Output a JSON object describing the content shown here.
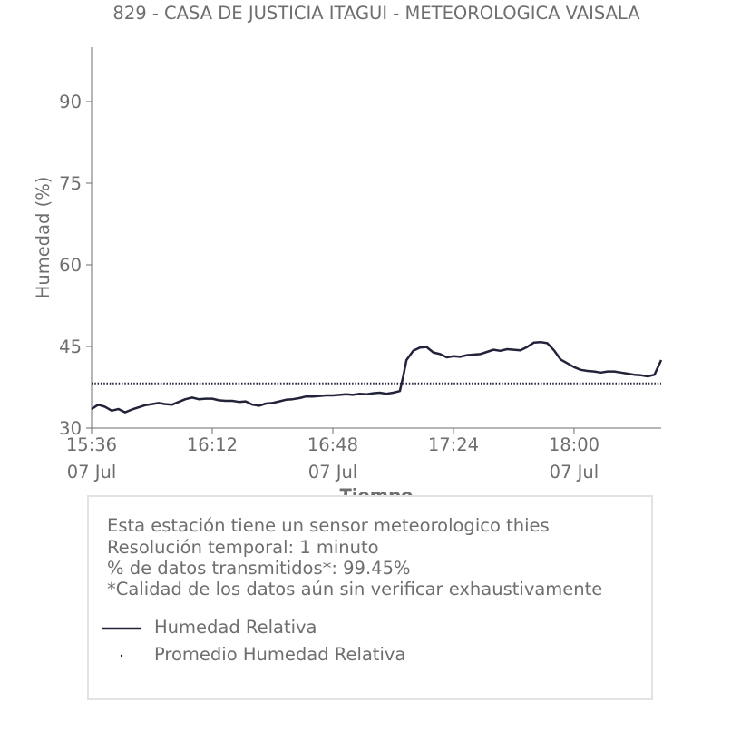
{
  "chart_data": {
    "type": "line",
    "title": "829 - CASA DE JUSTICIA ITAGUI - METEOROLOGICA VAISALA",
    "xlabel": "Tiempo",
    "ylabel": "Humedad (%)",
    "ylim": [
      30,
      100
    ],
    "yticks": [
      30,
      45,
      60,
      75,
      90
    ],
    "xlim": [
      "15:36",
      "18:26"
    ],
    "xticks": [
      {
        "time": "15:36",
        "date": "07 Jul"
      },
      {
        "time": "16:12",
        "date": ""
      },
      {
        "time": "16:48",
        "date": "07 Jul"
      },
      {
        "time": "17:24",
        "date": ""
      },
      {
        "time": "18:00",
        "date": "07 Jul"
      }
    ],
    "grid": false,
    "series": [
      {
        "name": "Humedad Relativa",
        "style": "solid",
        "color": "#22223a",
        "x": [
          "15:36",
          "15:38",
          "15:40",
          "15:42",
          "15:44",
          "15:46",
          "15:48",
          "15:50",
          "15:52",
          "15:54",
          "15:56",
          "15:58",
          "16:00",
          "16:02",
          "16:04",
          "16:06",
          "16:08",
          "16:10",
          "16:12",
          "16:14",
          "16:16",
          "16:18",
          "16:20",
          "16:22",
          "16:24",
          "16:26",
          "16:28",
          "16:30",
          "16:32",
          "16:34",
          "16:36",
          "16:38",
          "16:40",
          "16:42",
          "16:44",
          "16:46",
          "16:48",
          "16:50",
          "16:52",
          "16:54",
          "16:56",
          "16:58",
          "17:00",
          "17:02",
          "17:04",
          "17:06",
          "17:08",
          "17:09",
          "17:10",
          "17:12",
          "17:14",
          "17:16",
          "17:18",
          "17:20",
          "17:22",
          "17:24",
          "17:26",
          "17:28",
          "17:30",
          "17:32",
          "17:34",
          "17:36",
          "17:38",
          "17:40",
          "17:42",
          "17:44",
          "17:46",
          "17:48",
          "17:50",
          "17:52",
          "17:54",
          "17:56",
          "17:58",
          "18:00",
          "18:02",
          "18:04",
          "18:06",
          "18:08",
          "18:10",
          "18:12",
          "18:14",
          "18:16",
          "18:18",
          "18:20",
          "18:22",
          "18:24",
          "18:26"
        ],
        "y": [
          33.5,
          34.3,
          33.9,
          33.2,
          33.5,
          32.9,
          33.4,
          33.8,
          34.2,
          34.4,
          34.6,
          34.4,
          34.3,
          34.8,
          35.3,
          35.6,
          35.3,
          35.4,
          35.4,
          35.1,
          35.0,
          35.0,
          34.8,
          34.9,
          34.3,
          34.1,
          34.5,
          34.6,
          34.9,
          35.2,
          35.3,
          35.5,
          35.8,
          35.8,
          35.9,
          36.0,
          36.0,
          36.1,
          36.2,
          36.1,
          36.3,
          36.2,
          36.4,
          36.5,
          36.3,
          36.5,
          36.8,
          39.5,
          42.5,
          44.2,
          44.8,
          44.9,
          43.9,
          43.6,
          43.0,
          43.2,
          43.1,
          43.4,
          43.5,
          43.6,
          44.0,
          44.4,
          44.2,
          44.5,
          44.4,
          44.3,
          44.9,
          45.7,
          45.8,
          45.6,
          44.3,
          42.6,
          41.9,
          41.2,
          40.7,
          40.5,
          40.4,
          40.2,
          40.4,
          40.4,
          40.2,
          40.0,
          39.8,
          39.7,
          39.5,
          39.8,
          42.5
        ]
      },
      {
        "name": "Promedio Humedad Relativa",
        "style": "dotted",
        "color": "#22223a",
        "x": [
          "15:36",
          "18:26"
        ],
        "y": [
          38.2,
          38.2
        ]
      }
    ],
    "legend_placement": "bottom"
  },
  "notes": [
    "Esta estación tiene un sensor meteorologico thies",
    "Resolución temporal: 1 minuto",
    "% de datos transmitidos*: 99.45%",
    "*Calidad de los datos aún sin verificar exhaustivamente"
  ],
  "colors": {
    "text": "#6e6e6e",
    "line": "#22223a",
    "axis": "#6e6e6e",
    "box_border": "#e3e3e3"
  }
}
